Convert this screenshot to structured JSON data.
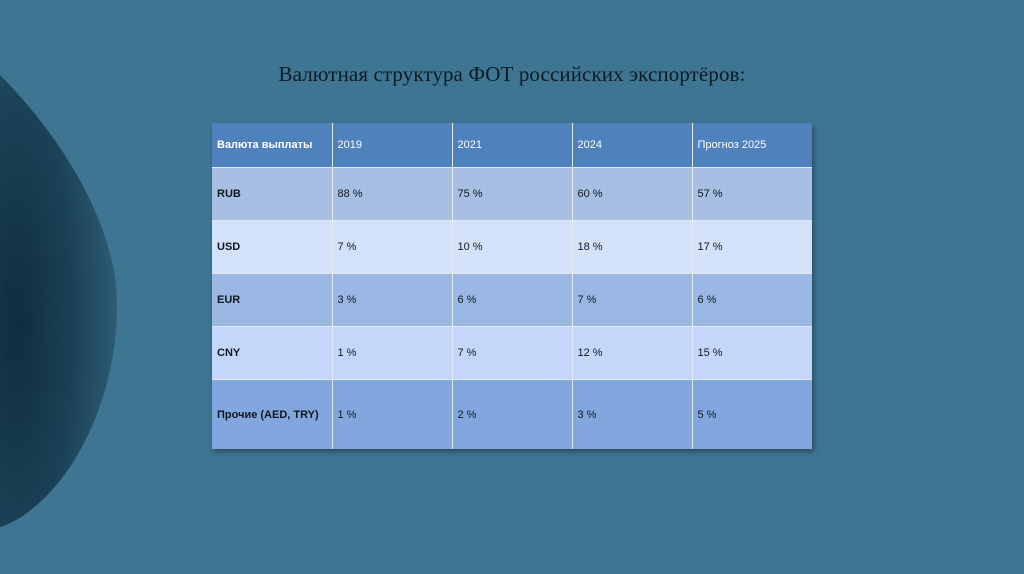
{
  "slide": {
    "title": "Валютная структура ФОТ российских экспортёров:"
  },
  "table": {
    "headers": [
      "Валюта выплаты",
      "2019",
      "2021",
      "2024",
      "Прогноз 2025"
    ],
    "rows": [
      {
        "currency": "RUB",
        "values": [
          "88 %",
          "75 %",
          "60 %",
          "57 %"
        ]
      },
      {
        "currency": "USD",
        "values": [
          "7 %",
          "10 %",
          "18 %",
          "17 %"
        ]
      },
      {
        "currency": "EUR",
        "values": [
          "3 %",
          "6 %",
          "7 %",
          "6 %"
        ]
      },
      {
        "currency": "CNY",
        "values": [
          "1 %",
          "7 %",
          "12 %",
          "15 %"
        ]
      },
      {
        "currency": "Прочие (AED, TRY)",
        "values": [
          "1 %",
          "2 %",
          "3 %",
          "5 %"
        ]
      }
    ]
  },
  "colors": {
    "background": "#3e7592",
    "header": "#4f81bd",
    "decoration": "#1e4358"
  }
}
